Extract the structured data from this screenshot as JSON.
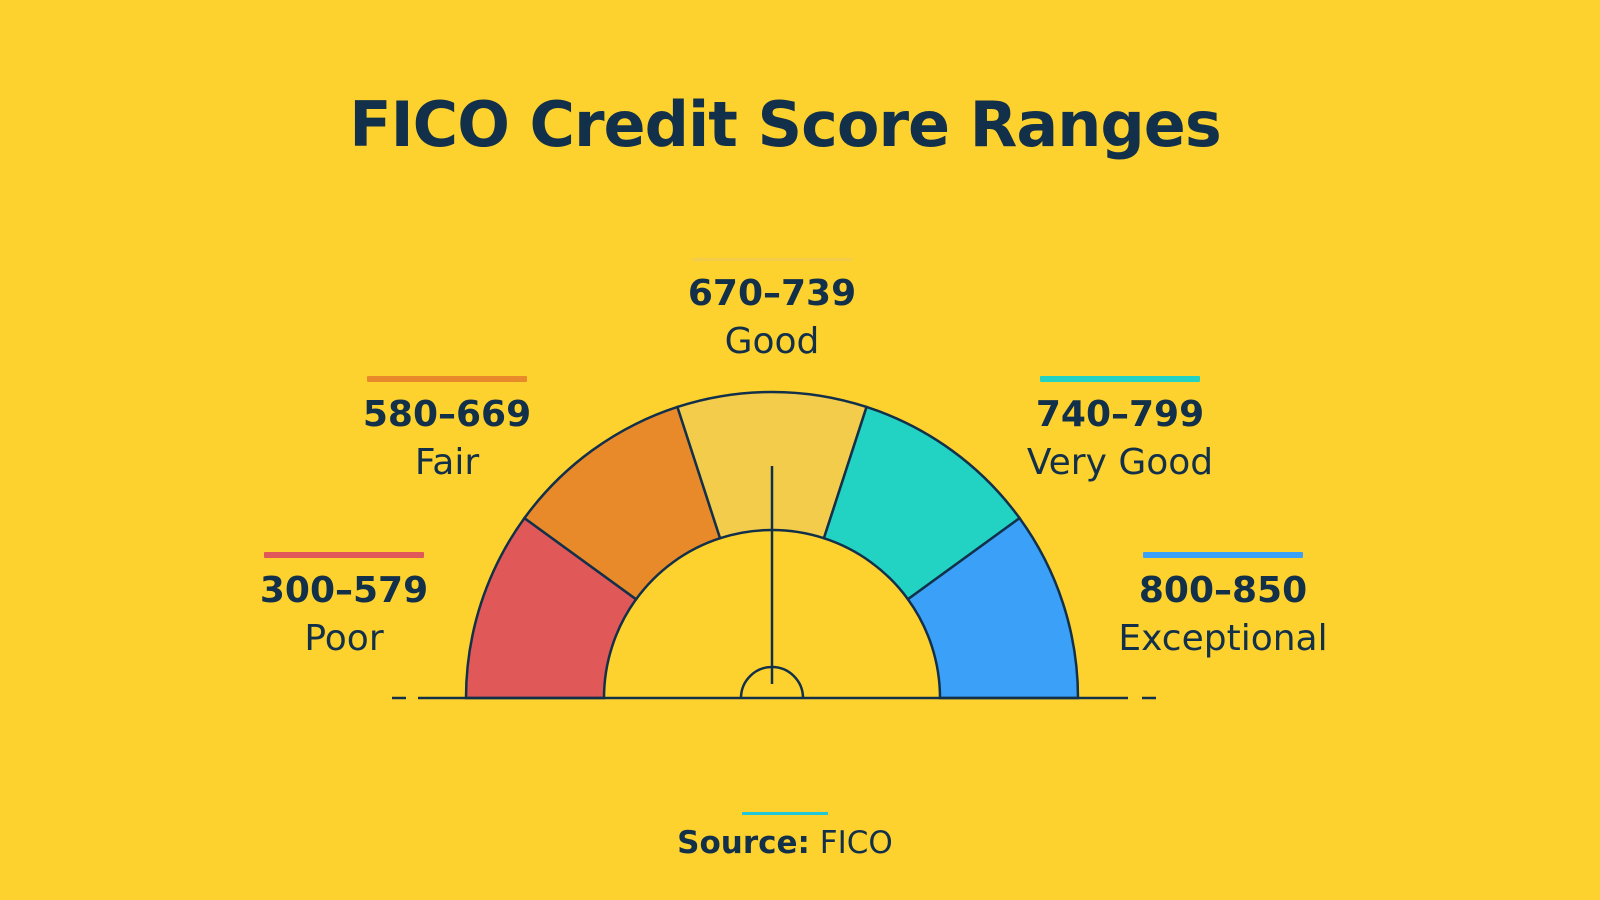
{
  "title": "FICO Credit Score Ranges",
  "ranges": [
    {
      "range": "300–579",
      "name": "Poor",
      "color": "#E05858"
    },
    {
      "range": "580–669",
      "name": "Fair",
      "color": "#E88A2A"
    },
    {
      "range": "670–739",
      "name": "Good",
      "color": "#F2CC4A"
    },
    {
      "range": "740–799",
      "name": "Very Good",
      "color": "#22D3C4"
    },
    {
      "range": "800–850",
      "name": "Exceptional",
      "color": "#3AA0F8"
    }
  ],
  "source": {
    "label": "Source:",
    "value": "FICO",
    "line_color": "#22C8D8"
  },
  "colors": {
    "background": "#FDD22E",
    "text": "#13304A"
  }
}
